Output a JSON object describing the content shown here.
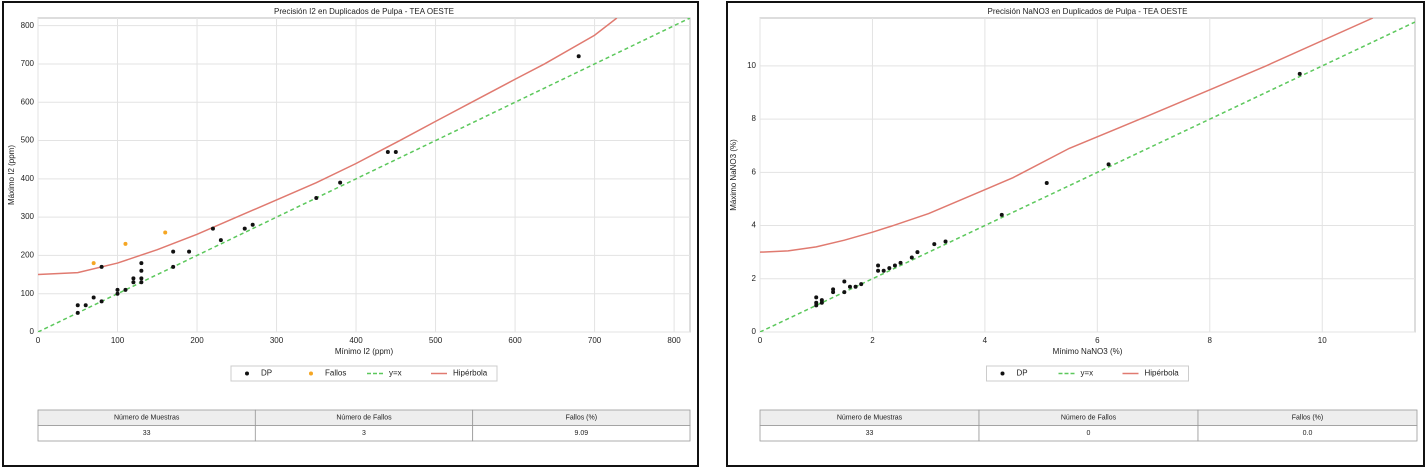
{
  "chart_data": [
    {
      "type": "scatter",
      "title": "Precisión I2 en Duplicados de Pulpa - TEA OESTE",
      "x_label": "Mínimo I2 (ppm)",
      "y_label": "Máximo I2 (ppm)",
      "xlim": [
        0,
        820
      ],
      "ylim": [
        0,
        820
      ],
      "xticks": [
        0,
        100,
        200,
        300,
        400,
        500,
        600,
        700,
        800
      ],
      "yticks": [
        0,
        100,
        200,
        300,
        400,
        500,
        600,
        700,
        800
      ],
      "grid": true,
      "legend": "bottom",
      "series": [
        {
          "name": "DP",
          "color": "#111111",
          "style": "scatter",
          "x": [
            50,
            50,
            60,
            70,
            80,
            80,
            100,
            100,
            110,
            120,
            120,
            130,
            130,
            130,
            130,
            170,
            170,
            190,
            220,
            230,
            260,
            270,
            350,
            380,
            440,
            450,
            680
          ],
          "values": [
            50,
            70,
            70,
            90,
            80,
            170,
            100,
            110,
            110,
            130,
            140,
            130,
            140,
            160,
            180,
            170,
            210,
            210,
            270,
            240,
            270,
            280,
            350,
            390,
            470,
            470,
            720
          ]
        },
        {
          "name": "Fallos",
          "color": "#f5a623",
          "style": "scatter",
          "x": [
            70,
            110,
            160
          ],
          "values": [
            180,
            230,
            260
          ]
        },
        {
          "name": "y=x",
          "color": "#5cc85c",
          "style": "line",
          "dash": true,
          "x": [
            0,
            820
          ],
          "values": [
            0,
            820
          ]
        },
        {
          "name": "Hipérbola",
          "color": "#e07a70",
          "style": "line",
          "dash": false,
          "x": [
            0,
            50,
            100,
            150,
            200,
            250,
            300,
            350,
            400,
            455,
            500,
            550,
            600,
            637,
            700,
            728
          ],
          "values": [
            150,
            155,
            180,
            215,
            255,
            300,
            345,
            390,
            440,
            500,
            550,
            605,
            660,
            700,
            775,
            820
          ]
        }
      ]
    },
    {
      "type": "scatter",
      "title": "Precisión NaNO3 en Duplicados de Pulpa - TEA OESTE",
      "x_label": "Mínimo NaNO3 (%)",
      "y_label": "Máximo NaNO3 (%)",
      "xlim": [
        0,
        11.65
      ],
      "ylim": [
        0,
        11.8
      ],
      "xticks": [
        0,
        2,
        4,
        6,
        8,
        10
      ],
      "yticks": [
        0,
        2,
        4,
        6,
        8,
        10
      ],
      "grid": true,
      "legend": "bottom",
      "series": [
        {
          "name": "DP",
          "color": "#111111",
          "style": "scatter",
          "x": [
            1,
            1,
            1,
            1.1,
            1.1,
            1.3,
            1.3,
            1.5,
            1.5,
            1.6,
            1.7,
            1.8,
            2.1,
            2.1,
            2.2,
            2.3,
            2.4,
            2.5,
            2.7,
            2.8,
            3.1,
            3.3,
            4.3,
            5.1,
            6.2,
            9.6
          ],
          "values": [
            1,
            1.1,
            1.3,
            1.1,
            1.2,
            1.5,
            1.6,
            1.5,
            1.9,
            1.7,
            1.7,
            1.8,
            2.3,
            2.5,
            2.3,
            2.4,
            2.5,
            2.6,
            2.8,
            3,
            3.3,
            3.4,
            4.4,
            5.6,
            6.3,
            9.7
          ]
        },
        {
          "name": "y=x",
          "color": "#5cc85c",
          "style": "line",
          "dash": true,
          "x": [
            0,
            11.65
          ],
          "values": [
            0,
            11.65
          ]
        },
        {
          "name": "Hipérbola",
          "color": "#e07a70",
          "style": "line",
          "dash": false,
          "x": [
            0,
            0.5,
            1,
            1.5,
            2,
            2.37,
            3,
            4,
            4.5,
            5.5,
            6.76,
            8,
            9,
            10.9
          ],
          "values": [
            3,
            3.05,
            3.2,
            3.45,
            3.75,
            4,
            4.45,
            5.35,
            5.8,
            6.9,
            8,
            9.1,
            10,
            11.8
          ]
        }
      ]
    }
  ],
  "tables": [
    {
      "headers": [
        "Número de Muestras",
        "Número de Fallos",
        "Fallos (%)"
      ],
      "rows": [
        [
          "33",
          "3",
          "9.09"
        ]
      ]
    },
    {
      "headers": [
        "Número de Muestras",
        "Número de Fallos",
        "Fallos (%)"
      ],
      "rows": [
        [
          "33",
          "0",
          "0.0"
        ]
      ]
    }
  ]
}
